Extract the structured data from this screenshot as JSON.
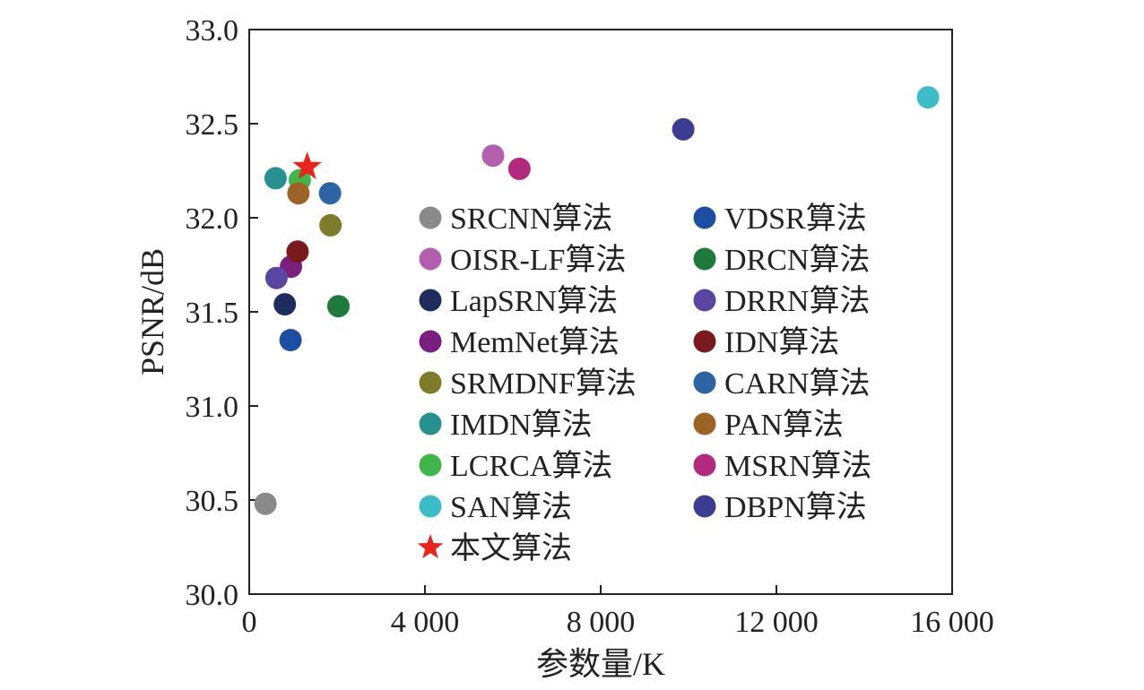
{
  "chart_data": {
    "type": "scatter",
    "title": "",
    "xlabel": "参数量/K",
    "ylabel": "PSNR/dB",
    "xlim": [
      0,
      16000
    ],
    "ylim": [
      30.0,
      33.0
    ],
    "x_ticks": [
      0,
      4000,
      8000,
      12000,
      16000
    ],
    "x_tick_labels": [
      "0",
      "4 000",
      "8 000",
      "12 000",
      "16 000"
    ],
    "y_ticks": [
      30.0,
      30.5,
      31.0,
      31.5,
      32.0,
      32.5,
      33.0
    ],
    "y_tick_labels": [
      "30.0",
      "30.5",
      "31.0",
      "31.5",
      "32.0",
      "32.5",
      "33.0"
    ],
    "grid": false,
    "legend_position": "center",
    "series": [
      {
        "name": "SRCNN算法",
        "x": 370,
        "y": 30.48,
        "color": "#8a8a8a",
        "marker": "circle"
      },
      {
        "name": "OISR-LF算法",
        "x": 5550,
        "y": 32.33,
        "color": "#b45fae",
        "marker": "circle"
      },
      {
        "name": "LapSRN算法",
        "x": 810,
        "y": 31.54,
        "color": "#1f2c5e",
        "marker": "circle"
      },
      {
        "name": "MemNet算法",
        "x": 950,
        "y": 31.74,
        "color": "#7a1f7f",
        "marker": "circle"
      },
      {
        "name": "SRMDNF算法",
        "x": 1850,
        "y": 31.96,
        "color": "#7e7b2c",
        "marker": "circle"
      },
      {
        "name": "IMDN算法",
        "x": 600,
        "y": 32.21,
        "color": "#26918f",
        "marker": "circle"
      },
      {
        "name": "LCRCA算法",
        "x": 1150,
        "y": 32.2,
        "color": "#3fb54a",
        "marker": "circle"
      },
      {
        "name": "SAN算法",
        "x": 15450,
        "y": 32.64,
        "color": "#3bbcc6",
        "marker": "circle"
      },
      {
        "name": "本文算法",
        "x": 1320,
        "y": 32.27,
        "color": "#e8241f",
        "marker": "star"
      },
      {
        "name": "VDSR算法",
        "x": 940,
        "y": 31.35,
        "color": "#1e4ea2",
        "marker": "circle"
      },
      {
        "name": "DRCN算法",
        "x": 2030,
        "y": 31.53,
        "color": "#1e7a3c",
        "marker": "circle"
      },
      {
        "name": "DRRN算法",
        "x": 620,
        "y": 31.68,
        "color": "#5a45a0",
        "marker": "circle"
      },
      {
        "name": "IDN算法",
        "x": 1100,
        "y": 31.82,
        "color": "#7a1a1e",
        "marker": "circle"
      },
      {
        "name": "CARN算法",
        "x": 1840,
        "y": 32.13,
        "color": "#2d64a3",
        "marker": "circle"
      },
      {
        "name": "PAN算法",
        "x": 1120,
        "y": 32.13,
        "color": "#9b6326",
        "marker": "circle"
      },
      {
        "name": "MSRN算法",
        "x": 6150,
        "y": 32.26,
        "color": "#b22a7e",
        "marker": "circle"
      },
      {
        "name": "DBPN算法",
        "x": 9880,
        "y": 32.47,
        "color": "#3b3d93",
        "marker": "circle"
      }
    ],
    "legend_columns": [
      [
        "SRCNN算法",
        "OISR-LF算法",
        "LapSRN算法",
        "MemNet算法",
        "SRMDNF算法",
        "IMDN算法",
        "LCRCA算法",
        "SAN算法",
        "本文算法"
      ],
      [
        "VDSR算法",
        "DRCN算法",
        "DRRN算法",
        "IDN算法",
        "CARN算法",
        "PAN算法",
        "MSRN算法",
        "DBPN算法"
      ]
    ]
  }
}
